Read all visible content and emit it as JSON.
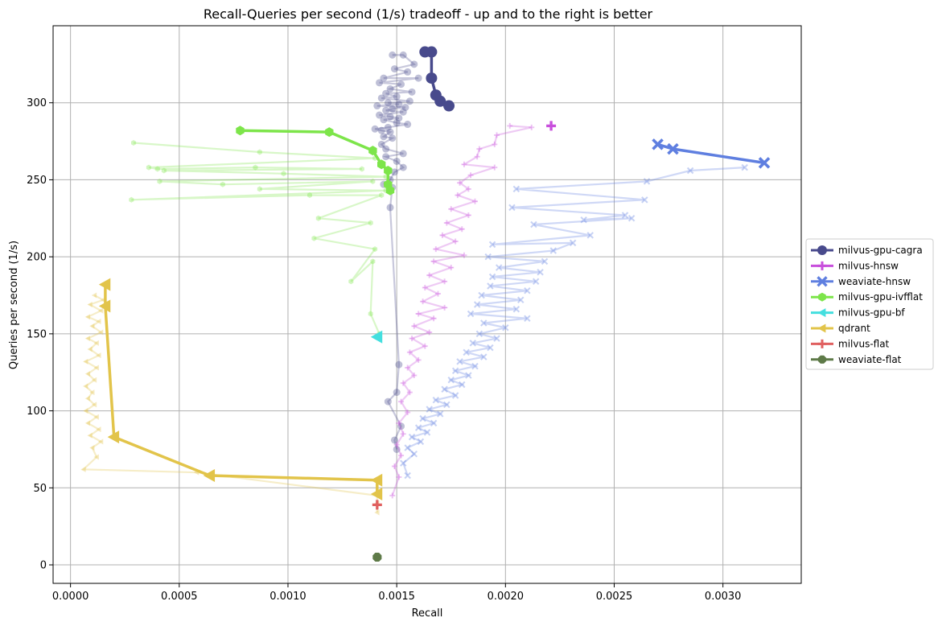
{
  "chart_data": {
    "type": "line",
    "title": "Recall-Queries per second (1/s) tradeoff - up and to the right is better",
    "xlabel": "Recall",
    "ylabel": "Queries per second (1/s)",
    "xlim": [
      -8e-05,
      0.00336
    ],
    "ylim": [
      -12,
      350
    ],
    "xticks": [
      0.0,
      0.0005,
      0.001,
      0.0015,
      0.002,
      0.0025,
      0.003
    ],
    "xtick_labels": [
      "0.0000",
      "0.0005",
      "0.0010",
      "0.0015",
      "0.0020",
      "0.0025",
      "0.0030"
    ],
    "yticks": [
      0,
      50,
      100,
      150,
      200,
      250,
      300
    ],
    "ytick_labels": [
      "0",
      "50",
      "100",
      "150",
      "200",
      "250",
      "300"
    ],
    "grid": true,
    "legend_position": "right, outside plot",
    "series": [
      {
        "name": "milvus-gpu-cagra",
        "color": "#484a8c",
        "marker": "circle",
        "x": [
          0.00163,
          0.00166,
          0.00166,
          0.00168,
          0.0017,
          0.00174
        ],
        "y": [
          333,
          333,
          316,
          305,
          301,
          298
        ],
        "faint_x": [
          0.00148,
          0.00153,
          0.00158,
          0.00149,
          0.00155,
          0.00144,
          0.0016,
          0.00142,
          0.00152,
          0.00147,
          0.00157,
          0.00145,
          0.0015,
          0.00143,
          0.00156,
          0.00146,
          0.00151,
          0.00141,
          0.00154,
          0.00148,
          0.00145,
          0.00153,
          0.00142,
          0.00147,
          0.00151,
          0.00144,
          0.0015,
          0.00155,
          0.00146,
          0.0014,
          0.00143,
          0.00147,
          0.00144,
          0.00148,
          0.00143,
          0.00145,
          0.00153,
          0.00145,
          0.0015,
          0.00153,
          0.00149,
          0.00147,
          0.00144
        ],
        "faint_y": [
          331,
          331,
          325,
          322,
          320,
          316,
          316,
          313,
          312,
          309,
          307,
          306,
          304,
          303,
          301,
          300,
          299,
          298,
          297,
          296,
          295,
          294,
          292,
          291,
          290,
          289,
          287,
          286,
          284,
          283,
          282,
          281,
          278,
          277,
          273,
          270,
          267,
          265,
          262,
          258,
          255,
          250,
          247
        ],
        "tail_x": [
          0.00148,
          0.00147,
          0.00151,
          0.0015,
          0.00146,
          0.00152,
          0.00149,
          0.0015
        ],
        "tail_y": [
          245,
          232,
          130,
          112,
          106,
          90,
          81,
          75
        ]
      },
      {
        "name": "milvus-hnsw",
        "color": "#c84fdc",
        "marker": "plus",
        "x": [
          0.00221
        ],
        "y": [
          285
        ],
        "faint_x": [
          0.00202,
          0.00212,
          0.00196,
          0.00195,
          0.00188,
          0.00187,
          0.00181,
          0.00195,
          0.00184,
          0.00179,
          0.00183,
          0.00178,
          0.00186,
          0.00175,
          0.00183,
          0.00173,
          0.0018,
          0.00171,
          0.00177,
          0.00168,
          0.00181,
          0.00167,
          0.00175,
          0.00165,
          0.00172,
          0.00163,
          0.00169,
          0.00162,
          0.00172,
          0.0016,
          0.00167,
          0.00158,
          0.00165,
          0.00157,
          0.00163,
          0.00156,
          0.0016,
          0.00155,
          0.00158,
          0.00153,
          0.00156,
          0.00152,
          0.00155,
          0.00151,
          0.00153,
          0.0015,
          0.00152,
          0.00149,
          0.00151,
          0.00148
        ],
        "faint_y": [
          285,
          284,
          279,
          273,
          270,
          265,
          260,
          258,
          253,
          248,
          244,
          240,
          236,
          231,
          227,
          222,
          218,
          214,
          210,
          205,
          201,
          197,
          193,
          188,
          184,
          180,
          176,
          171,
          167,
          163,
          160,
          155,
          151,
          147,
          142,
          138,
          133,
          128,
          123,
          118,
          112,
          106,
          99,
          92,
          85,
          78,
          71,
          64,
          57,
          45
        ]
      },
      {
        "name": "weaviate-hnsw",
        "color": "#5f7fe0",
        "marker": "x",
        "x": [
          0.0027,
          0.00277,
          0.00319
        ],
        "y": [
          273,
          270,
          261
        ],
        "faint_x": [
          0.0031,
          0.00285,
          0.00265,
          0.00205,
          0.00264,
          0.00203,
          0.00255,
          0.00236,
          0.00258,
          0.00213,
          0.00239,
          0.00194,
          0.00231,
          0.00222,
          0.00192,
          0.00218,
          0.00197,
          0.00216,
          0.00194,
          0.00214,
          0.00193,
          0.0021,
          0.00189,
          0.00207,
          0.00187,
          0.00205,
          0.00184,
          0.0021,
          0.0019,
          0.002,
          0.00188,
          0.00196,
          0.00185,
          0.00193,
          0.00182,
          0.0019,
          0.00179,
          0.00186,
          0.00177,
          0.00183,
          0.00175,
          0.0018,
          0.00172,
          0.00177,
          0.00168,
          0.00173,
          0.00165,
          0.0017,
          0.00162,
          0.00167,
          0.0016,
          0.00164,
          0.00157,
          0.00161,
          0.00155,
          0.00158,
          0.00153,
          0.00155
        ],
        "faint_y": [
          258,
          256,
          249,
          244,
          237,
          232,
          227,
          224,
          225,
          221,
          214,
          208,
          209,
          204,
          200,
          197,
          193,
          190,
          187,
          184,
          181,
          178,
          175,
          172,
          169,
          166,
          163,
          160,
          157,
          154,
          150,
          147,
          144,
          141,
          138,
          135,
          132,
          129,
          126,
          123,
          120,
          117,
          114,
          110,
          107,
          104,
          101,
          98,
          95,
          92,
          89,
          86,
          83,
          80,
          76,
          72,
          66,
          58
        ]
      },
      {
        "name": "milvus-gpu-ivfflat",
        "color": "#7de54a",
        "marker": "hexagon",
        "x": [
          0.00078,
          0.00119,
          0.00139,
          0.00143,
          0.00146,
          0.00146,
          0.00147
        ],
        "y": [
          282,
          281,
          269,
          260,
          256,
          247,
          243
        ],
        "faint_x": [
          0.00029,
          0.00087,
          0.0014,
          0.00036,
          0.0004,
          0.00085,
          0.00134,
          0.00043,
          0.00098,
          0.00145,
          0.00041,
          0.0007,
          0.00139,
          0.00087,
          0.00145,
          0.00028,
          0.0011,
          0.00143,
          0.00114,
          0.00138,
          0.00112,
          0.0014,
          0.00129,
          0.00139,
          0.00138,
          0.00142
        ],
        "faint_y": [
          274,
          268,
          264,
          258,
          257,
          258,
          257,
          256,
          254,
          252,
          249,
          247,
          249,
          244,
          243,
          237,
          240,
          240,
          225,
          222,
          212,
          205,
          184,
          197,
          163,
          150
        ]
      },
      {
        "name": "milvus-gpu-bf",
        "color": "#44dfdf",
        "marker": "triangle-left",
        "x": [
          0.00141
        ],
        "y": [
          148
        ]
      },
      {
        "name": "qdrant",
        "color": "#e2c44a",
        "marker": "triangle-left",
        "x": [
          0.00016,
          0.00016,
          0.0002,
          0.00064,
          0.00141,
          0.00141
        ],
        "y": [
          182,
          168,
          83,
          58,
          55,
          46
        ],
        "faint_x": [
          0.00011,
          0.00015,
          9e-05,
          0.00014,
          8e-05,
          0.00013,
          0.0001,
          0.00014,
          8e-05,
          0.00012,
          9e-05,
          0.00013,
          7e-05,
          0.00012,
          8e-05,
          0.00011,
          7e-05,
          0.0001,
          8e-05,
          0.00011,
          7e-05,
          0.00012,
          8e-05,
          0.00013,
          9e-05,
          0.00014,
          0.0001,
          0.00012,
          6e-05,
          0.00058,
          0.00141,
          0.00141,
          0.00141
        ],
        "faint_y": [
          175,
          172,
          169,
          165,
          161,
          158,
          155,
          151,
          147,
          144,
          140,
          136,
          132,
          128,
          124,
          120,
          116,
          112,
          108,
          104,
          100,
          96,
          92,
          88,
          84,
          80,
          76,
          70,
          62,
          60,
          45,
          40,
          34
        ]
      },
      {
        "name": "milvus-flat",
        "color": "#e06060",
        "marker": "plus",
        "x": [
          0.00141
        ],
        "y": [
          39
        ]
      },
      {
        "name": "weaviate-flat",
        "color": "#5e7a48",
        "marker": "octagon",
        "x": [
          0.00141
        ],
        "y": [
          5
        ]
      }
    ]
  }
}
